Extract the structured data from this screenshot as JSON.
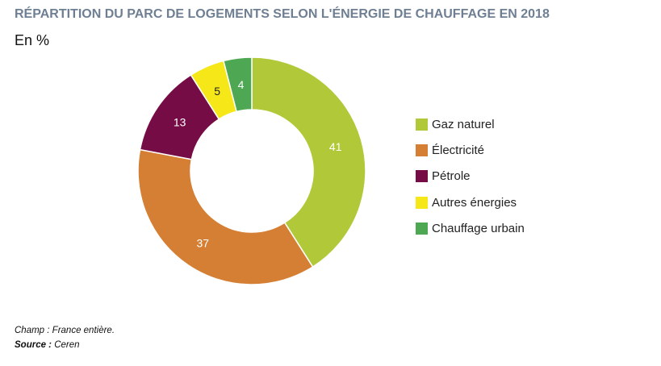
{
  "header": {
    "title": "RÉPARTITION DU PARC DE LOGEMENTS SELON L'ÉNERGIE DE CHAUFFAGE EN 2018",
    "subtitle": "En %"
  },
  "chart_data": {
    "type": "pie",
    "donut": true,
    "title": "RÉPARTITION DU PARC DE LOGEMENTS SELON L'ÉNERGIE DE CHAUFFAGE EN 2018",
    "unit": "En %",
    "categories": [
      "Gaz naturel",
      "Électricité",
      "Pétrole",
      "Autres énergies",
      "Chauffage urbain"
    ],
    "values": [
      41,
      37,
      13,
      5,
      4
    ],
    "colors": [
      "#b1c938",
      "#d47f33",
      "#760c46",
      "#f6e719",
      "#4ea853"
    ],
    "label_colors": [
      "#ffffff",
      "#ffffff",
      "#ffffff",
      "#222222",
      "#ffffff"
    ],
    "legend_position": "right"
  },
  "footer": {
    "champ_label": "Champ : ",
    "champ_text": "France entière.",
    "source_label": "Source : ",
    "source_text": "Ceren"
  }
}
